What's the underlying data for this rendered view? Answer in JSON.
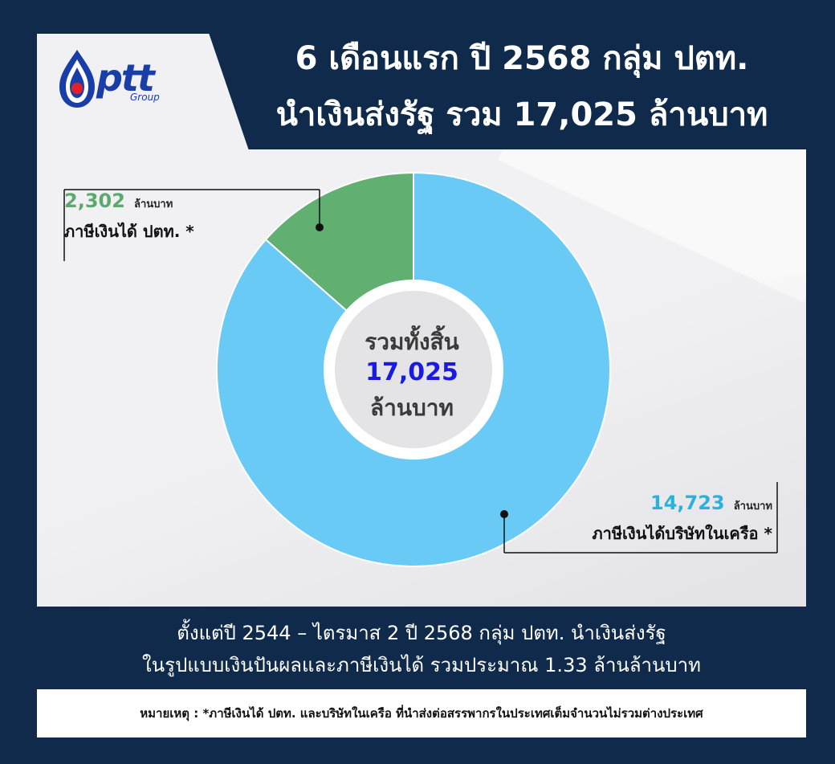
{
  "header": {
    "line1": "6 เดือนแรก ปี 2568  กลุ่ม ปตท.",
    "line2": "นำเงินส่งรัฐ รวม 17,025 ล้านบาท"
  },
  "logo": {
    "text": "ptt",
    "subtext": "Group",
    "icon": "ptt-flame-logo-icon"
  },
  "chart_data": {
    "type": "pie",
    "donut": true,
    "total": 17025,
    "unit": "ล้านบาท",
    "center": {
      "line1": "รวมทั้งสิ้น",
      "line2": "17,025",
      "line3": "ล้านบาท"
    },
    "slices": [
      {
        "label": "ภาษีเงินได้ ปตท. *",
        "value": 2302,
        "value_text": "2,302",
        "unit": "ล้านบาท",
        "color": "#62af72"
      },
      {
        "label": "ภาษีเงินได้บริษัทในเครือ *",
        "value": 14723,
        "value_text": "14,723",
        "unit": "ล้านบาท",
        "color": "#69cbf5"
      }
    ]
  },
  "summary": {
    "line1": "ตั้งแต่ปี 2544 – ไตรมาส 2 ปี 2568 กลุ่ม ปตท. นำเงินส่งรัฐ",
    "line2": "ในรูปแบบเงินปันผลและภาษีเงินได้ รวมประมาณ 1.33 ล้านล้านบาท"
  },
  "note": {
    "text": "หมายเหตุ : *ภาษีเงินได้ ปตท. และบริษัทในเครือ ที่นำส่งต่อสรรพากรในประเทศเต็มจำนวนไม่รวมต่างประเทศ"
  },
  "colors": {
    "background": "#0f2a4a",
    "panel": "#f1f1f3",
    "ptt_slice": "#62af72",
    "subsidiary_slice": "#69cbf5",
    "center_value": "#1a1ae0"
  }
}
